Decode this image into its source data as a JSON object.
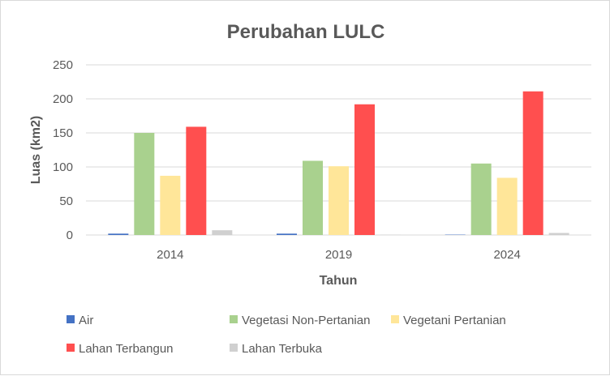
{
  "chart_data": {
    "type": "bar",
    "title": "Perubahan LULC",
    "xlabel": "Tahun",
    "ylabel": "Luas (km2)",
    "categories": [
      "2014",
      "2019",
      "2024"
    ],
    "ylim": [
      0,
      250
    ],
    "yticks": [
      0,
      50,
      100,
      150,
      200,
      250
    ],
    "grid": true,
    "legend_position": "bottom",
    "series": [
      {
        "name": "Air",
        "color": "#4472c4",
        "values": [
          2,
          2,
          0.5
        ]
      },
      {
        "name": "Vegetasi Non-Pertanian",
        "color": "#a9d18e",
        "values": [
          150,
          109,
          105
        ]
      },
      {
        "name": "Vegetani Pertanian",
        "color": "#ffe699",
        "values": [
          87,
          101,
          84
        ]
      },
      {
        "name": "Lahan Terbangun",
        "color": "#ff4f4f",
        "values": [
          159,
          192,
          211
        ]
      },
      {
        "name": "Lahan Terbuka",
        "color": "#d0d0d0",
        "values": [
          7,
          0.5,
          3
        ]
      }
    ]
  }
}
